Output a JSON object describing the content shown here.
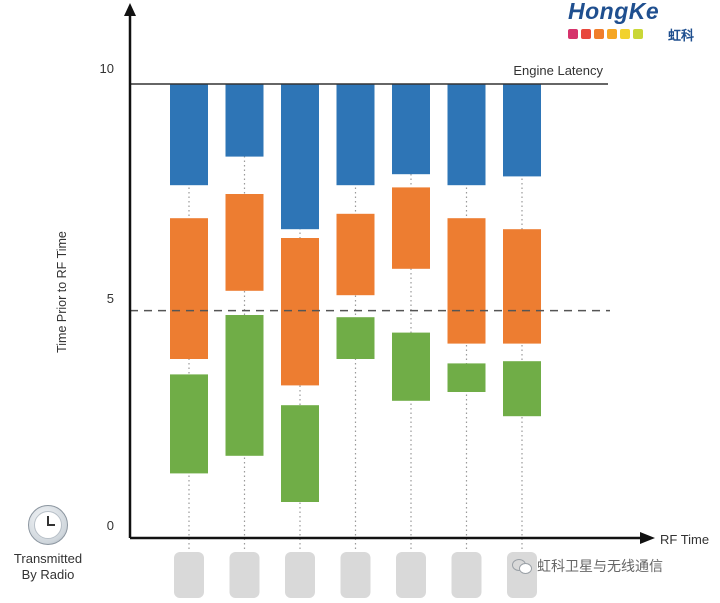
{
  "logo": {
    "text": "HongKe",
    "subtitle": "虹科",
    "square_colors": [
      "#d6336c",
      "#e8473c",
      "#f07d2a",
      "#f5a623",
      "#f2d22e",
      "#c9d737"
    ]
  },
  "radio": {
    "label_line1": "Transmitted",
    "label_line2": "By Radio",
    "icon": "clock-icon"
  },
  "watermark": {
    "text": "虹科卫星与无线通信",
    "icon": "wechat-icon"
  },
  "colors": {
    "blue": "#2e75b6",
    "orange": "#ed7d31",
    "green": "#70ad47",
    "grey_box": "#d9d9d9"
  },
  "chart_data": {
    "type": "bar",
    "subtype": "floating-stacked-ranges",
    "xlabel": "RF Time",
    "ylabel": "Time Prior to RF Time",
    "ylim": [
      0,
      10
    ],
    "yticks": [
      0,
      5,
      10
    ],
    "grid": false,
    "annotations": [
      {
        "text": "Engine Latency",
        "y": 10,
        "line": "solid"
      },
      {
        "text": "",
        "y": 4.85,
        "line": "dashed"
      }
    ],
    "columns": 7,
    "series": [
      {
        "color": "blue",
        "ranges": [
          [
            7.7,
            10
          ],
          [
            8.35,
            10
          ],
          [
            6.7,
            10
          ],
          [
            7.7,
            10
          ],
          [
            7.95,
            10
          ],
          [
            7.7,
            10
          ],
          [
            7.9,
            10
          ]
        ]
      },
      {
        "color": "orange",
        "ranges": [
          [
            3.75,
            6.95
          ],
          [
            5.3,
            7.5
          ],
          [
            3.15,
            6.5
          ],
          [
            5.2,
            7.05
          ],
          [
            5.8,
            7.65
          ],
          [
            4.1,
            6.95
          ],
          [
            4.1,
            6.7
          ]
        ]
      },
      {
        "color": "green",
        "ranges": [
          [
            1.15,
            3.4
          ],
          [
            1.55,
            4.75
          ],
          [
            0.5,
            2.7
          ],
          [
            3.75,
            4.7
          ],
          [
            2.8,
            4.35
          ],
          [
            3.0,
            3.65
          ],
          [
            2.45,
            3.7
          ]
        ]
      }
    ],
    "footer_markers": 7
  }
}
